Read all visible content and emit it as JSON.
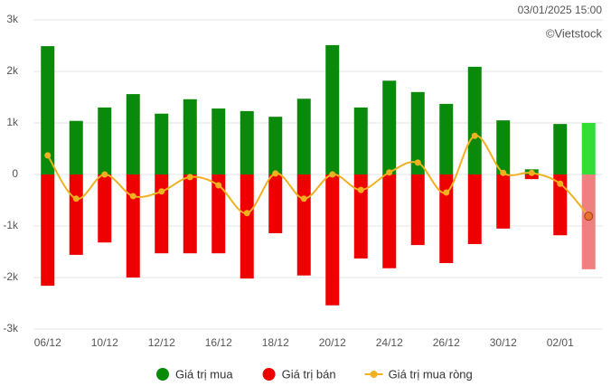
{
  "chart_data": {
    "type": "bar",
    "timestamp": "03/01/2025 15:00",
    "source": "©Vietstock",
    "categories": [
      "06/12",
      null,
      "10/12",
      null,
      "12/12",
      null,
      "16/12",
      null,
      "18/12",
      null,
      "20/12",
      null,
      "24/12",
      null,
      "26/12",
      null,
      "30/12",
      null,
      "02/01",
      null
    ],
    "series": [
      {
        "name": "Giá trị mua",
        "color": "#0a8a0a",
        "highlight_color": "#33dd33",
        "values": [
          2490,
          1040,
          1300,
          1560,
          1180,
          1460,
          1280,
          1230,
          1120,
          1470,
          2510,
          1300,
          1820,
          1600,
          1370,
          2090,
          1050,
          100,
          980,
          1000
        ]
      },
      {
        "name": "Giá trị bán",
        "color": "#ee0000",
        "highlight_color": "#f08080",
        "values": [
          -2160,
          -1560,
          -1320,
          -2000,
          -1530,
          -1530,
          -1530,
          -2020,
          -1140,
          -1960,
          -2540,
          -1630,
          -1820,
          -1370,
          -1720,
          -1350,
          -1050,
          -90,
          -1180,
          -1840
        ]
      },
      {
        "name": "Giá trị mua ròng",
        "type": "line",
        "color": "#f0b020",
        "values": [
          370,
          -470,
          0,
          -420,
          -330,
          -50,
          -210,
          -750,
          20,
          -470,
          0,
          -300,
          40,
          230,
          -350,
          750,
          30,
          30,
          -180,
          -810
        ]
      }
    ],
    "highlight_last": true,
    "ylim": [
      -3000,
      3000
    ],
    "yticks": [
      {
        "value": -3000,
        "label": "-3k"
      },
      {
        "value": -2000,
        "label": "-2k"
      },
      {
        "value": -1000,
        "label": "-1k"
      },
      0,
      {
        "value": 1000,
        "label": "1k"
      },
      {
        "value": 2000,
        "label": "2k"
      },
      {
        "value": 3000,
        "label": "3k"
      }
    ],
    "grid": true
  }
}
